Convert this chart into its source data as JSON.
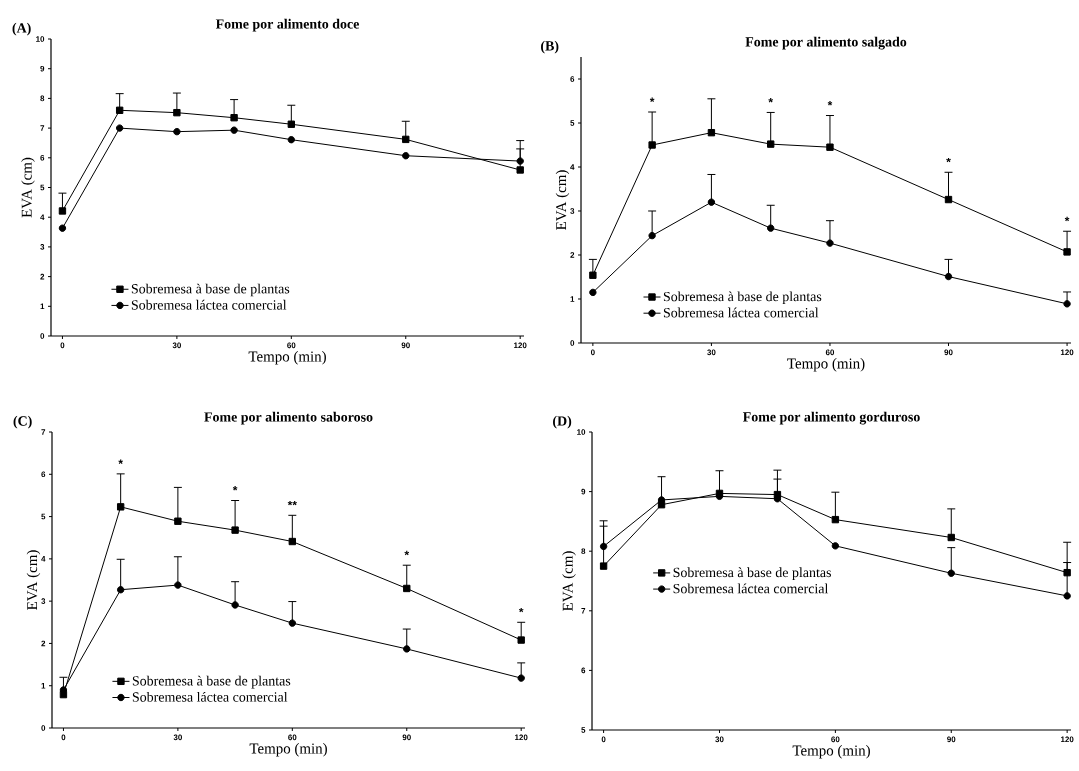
{
  "chart_data": [
    {
      "type": "line",
      "title": "Fome por alimento doce",
      "xlabel": "Tempo (min)",
      "ylabel": "EVA (cm)",
      "x": [
        0,
        15,
        30,
        45,
        60,
        90,
        120
      ],
      "xlim": [
        -3,
        121
      ],
      "xticks": [
        0,
        30,
        60,
        90,
        120
      ],
      "ylim": [
        0,
        10
      ],
      "yticks": [
        0,
        1,
        2,
        3,
        4,
        5,
        6,
        7,
        8,
        9,
        10
      ],
      "legend": "bottom left",
      "series": [
        {
          "name": "Sobremesa à base de plantas",
          "color": "#000000",
          "marker": "square",
          "values": [
            4.21,
            7.6,
            7.52,
            7.35,
            7.13,
            6.62,
            5.59
          ],
          "errors": [
            [
              4.21,
              4.81
            ],
            [
              7.6,
              8.16
            ],
            [
              7.52,
              8.18
            ],
            [
              7.35,
              7.96
            ],
            [
              7.13,
              7.77
            ],
            [
              6.62,
              7.23
            ],
            [
              5.59,
              6.58
            ]
          ]
        },
        {
          "name": "Sobremesa láctea comercial",
          "color": "#000000",
          "marker": "circle",
          "values": [
            3.63,
            7.0,
            6.88,
            6.93,
            6.61,
            6.07,
            5.89
          ],
          "errors": [
            null,
            null,
            null,
            null,
            null,
            null,
            [
              5.89,
              6.3
            ]
          ]
        }
      ],
      "annotations": [
        "(A)"
      ]
    },
    {
      "type": "line",
      "title": "Fome por alimento salgado",
      "xlabel": "Tempo (min)",
      "ylabel": "EVA (cm)",
      "x": [
        0,
        15,
        30,
        45,
        60,
        90,
        120
      ],
      "xlim": [
        -3,
        121
      ],
      "xticks": [
        0,
        30,
        60,
        90,
        120
      ],
      "ylim": [
        0,
        6.5
      ],
      "yticks": [
        0,
        1,
        2,
        3,
        4,
        5,
        6
      ],
      "legend": "bottom left",
      "series": [
        {
          "name": "Sobremesa à base de plantas",
          "color": "#000000",
          "marker": "square",
          "values": [
            1.54,
            4.5,
            4.78,
            4.52,
            4.45,
            3.26,
            2.07
          ],
          "errors": [
            [
              1.54,
              1.9
            ],
            [
              4.5,
              5.25
            ],
            [
              4.78,
              5.55
            ],
            [
              4.52,
              5.24
            ],
            [
              4.45,
              5.17
            ],
            [
              3.26,
              3.88
            ],
            [
              2.07,
              2.54
            ]
          ]
        },
        {
          "name": "Sobremesa láctea comercial",
          "color": "#000000",
          "marker": "circle",
          "values": [
            1.15,
            2.44,
            3.2,
            2.61,
            2.27,
            1.51,
            0.89
          ],
          "errors": [
            null,
            [
              2.44,
              3.0
            ],
            [
              3.2,
              3.83
            ],
            [
              2.61,
              3.13
            ],
            [
              2.27,
              2.78
            ],
            [
              1.51,
              1.9
            ],
            [
              0.89,
              1.16
            ]
          ]
        }
      ],
      "annotations": [
        "(B)",
        {
          "text": "*",
          "x": 15,
          "y": 5.25
        },
        {
          "text": "*",
          "x": 45,
          "y": 5.24
        },
        {
          "text": "*",
          "x": 60,
          "y": 5.17
        },
        {
          "text": "*",
          "x": 90,
          "y": 3.88
        },
        {
          "text": "*",
          "x": 120,
          "y": 2.54
        }
      ]
    },
    {
      "type": "line",
      "title": "Fome por alimento saboroso",
      "xlabel": "Tempo (min)",
      "ylabel": "EVA (cm)",
      "x": [
        0,
        15,
        30,
        45,
        60,
        90,
        120
      ],
      "xlim": [
        -3,
        121
      ],
      "xticks": [
        0,
        30,
        60,
        90,
        120
      ],
      "ylim": [
        0,
        7
      ],
      "yticks": [
        0,
        1,
        2,
        3,
        4,
        5,
        6,
        7
      ],
      "legend": "bottom left",
      "series": [
        {
          "name": "Sobremesa à base de plantas",
          "color": "#000000",
          "marker": "square",
          "values": [
            0.79,
            5.23,
            4.89,
            4.68,
            4.41,
            3.3,
            2.08
          ],
          "errors": [
            [
              0.79,
              1.2
            ],
            [
              5.23,
              6.01
            ],
            [
              4.89,
              5.69
            ],
            [
              4.68,
              5.38
            ],
            [
              4.41,
              5.03
            ],
            [
              3.3,
              3.85
            ],
            [
              2.08,
              2.5
            ]
          ]
        },
        {
          "name": "Sobremesa láctea comercial",
          "color": "#000000",
          "marker": "circle",
          "values": [
            0.9,
            3.27,
            3.38,
            2.91,
            2.48,
            1.87,
            1.18
          ],
          "errors": [
            null,
            [
              3.27,
              3.99
            ],
            [
              3.38,
              4.05
            ],
            [
              2.91,
              3.46
            ],
            [
              2.48,
              2.99
            ],
            [
              1.87,
              2.34
            ],
            [
              1.18,
              1.54
            ]
          ]
        }
      ],
      "annotations": [
        "(C)",
        {
          "text": "*",
          "x": 15,
          "y": 6.01
        },
        {
          "text": "*",
          "x": 45,
          "y": 5.38
        },
        {
          "text": "**",
          "x": 60,
          "y": 5.03
        },
        {
          "text": "*",
          "x": 90,
          "y": 3.85
        },
        {
          "text": "*",
          "x": 120,
          "y": 2.5
        }
      ]
    },
    {
      "type": "line",
      "title": "Fome por alimento gorduroso",
      "xlabel": "Tempo (min)",
      "ylabel": "EVA (cm)",
      "x": [
        0,
        15,
        30,
        45,
        60,
        90,
        120
      ],
      "xlim": [
        -3,
        121
      ],
      "xticks": [
        0,
        30,
        60,
        90,
        120
      ],
      "ylim": [
        5,
        10
      ],
      "yticks": [
        5,
        6,
        7,
        8,
        9,
        10
      ],
      "legend": "left",
      "series": [
        {
          "name": "Sobremesa à base de plantas",
          "color": "#000000",
          "marker": "square",
          "values": [
            7.75,
            8.78,
            8.97,
            8.95,
            8.53,
            8.23,
            7.64
          ],
          "errors": [
            [
              7.75,
              8.51
            ],
            [
              8.78,
              9.25
            ],
            [
              8.97,
              9.35
            ],
            [
              8.95,
              9.36
            ],
            [
              8.53,
              8.99
            ],
            [
              8.23,
              8.71
            ],
            [
              7.64,
              8.15
            ]
          ]
        },
        {
          "name": "Sobremesa láctea comercial",
          "color": "#000000",
          "marker": "circle",
          "values": [
            8.08,
            8.86,
            8.92,
            8.88,
            8.09,
            7.63,
            7.25
          ],
          "errors": [
            [
              8.08,
              8.42
            ],
            null,
            null,
            [
              8.88,
              9.21
            ],
            null,
            [
              7.63,
              8.06
            ],
            [
              7.25,
              7.81
            ]
          ]
        }
      ],
      "annotations": [
        "(D)"
      ]
    }
  ]
}
